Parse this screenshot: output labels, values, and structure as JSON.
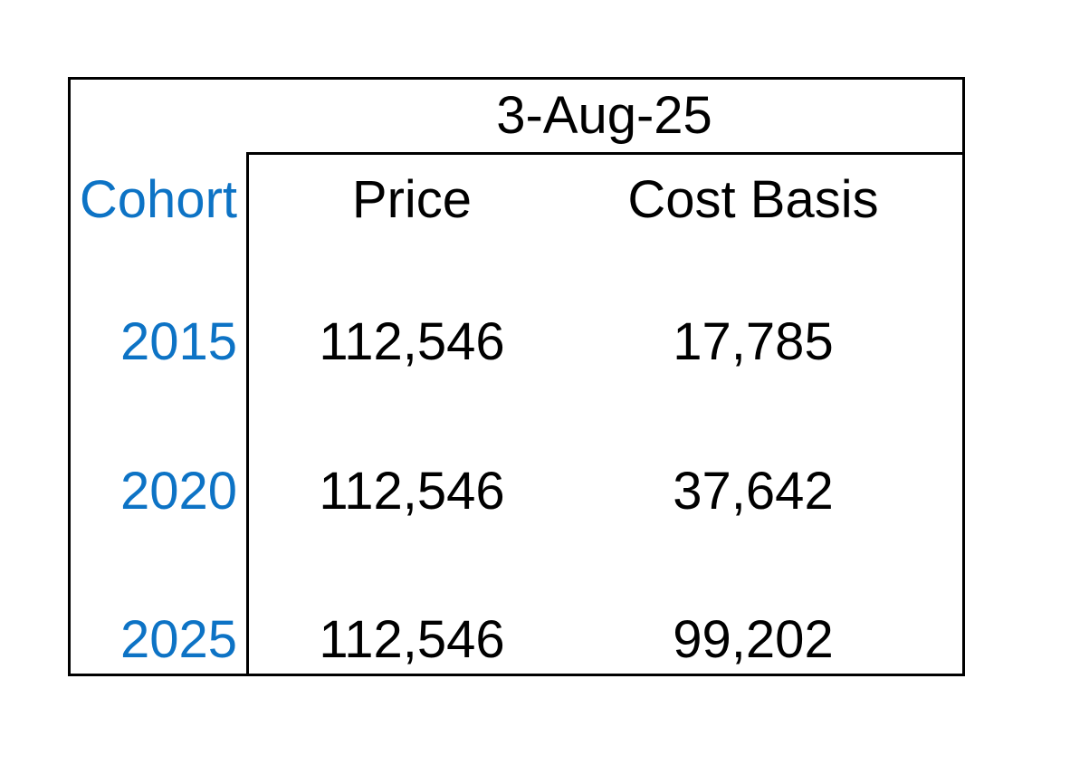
{
  "table": {
    "date_header": "3-Aug-25",
    "headers": {
      "cohort": "Cohort",
      "price": "Price",
      "cost_basis": "Cost Basis"
    },
    "rows": [
      {
        "cohort": "2015",
        "price": "112,546",
        "cost_basis": "17,785"
      },
      {
        "cohort": "2020",
        "price": "112,546",
        "cost_basis": "37,642"
      },
      {
        "cohort": "2025",
        "price": "112,546",
        "cost_basis": "99,202"
      }
    ],
    "colors": {
      "cohort_text": "#0d73c5",
      "value_text": "#000000",
      "border": "#000000",
      "background": "#ffffff"
    }
  },
  "chart_data": {
    "type": "table",
    "title": "3-Aug-25",
    "columns": [
      "Cohort",
      "Price",
      "Cost Basis"
    ],
    "rows": [
      {
        "cohort": 2015,
        "price": 112546,
        "cost_basis": 17785
      },
      {
        "cohort": 2020,
        "price": 112546,
        "cost_basis": 37642
      },
      {
        "cohort": 2025,
        "price": 112546,
        "cost_basis": 99202
      }
    ],
    "layout": {
      "date_header_merged_over": [
        "Price",
        "Cost Basis"
      ],
      "outer_border": true,
      "inner_dividers": [
        "left-of-price-column",
        "below-date-header"
      ],
      "grid": false
    }
  }
}
